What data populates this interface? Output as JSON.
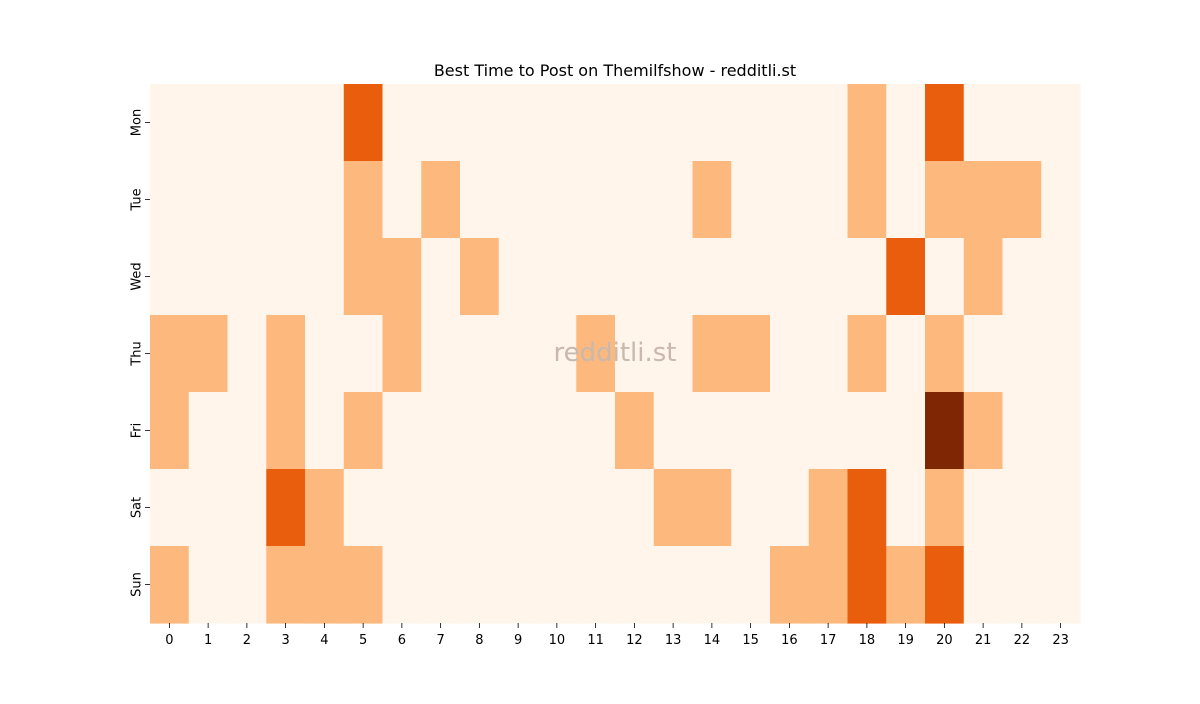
{
  "chart_data": {
    "type": "heatmap",
    "title": "Best Time to Post on Themilfshow - redditli.st",
    "watermark": "redditli.st",
    "xlabel": "",
    "ylabel": "",
    "x": [
      "0",
      "1",
      "2",
      "3",
      "4",
      "5",
      "6",
      "7",
      "8",
      "9",
      "10",
      "11",
      "12",
      "13",
      "14",
      "15",
      "16",
      "17",
      "18",
      "19",
      "20",
      "21",
      "22",
      "23"
    ],
    "y": [
      "Mon",
      "Tue",
      "Wed",
      "Thu",
      "Fri",
      "Sat",
      "Sun"
    ],
    "values": [
      [
        0,
        0,
        0,
        0,
        0,
        2,
        0,
        0,
        0,
        0,
        0,
        0,
        0,
        0,
        0,
        0,
        0,
        0,
        1,
        0,
        2,
        0,
        0,
        0
      ],
      [
        0,
        0,
        0,
        0,
        0,
        1,
        0,
        1,
        0,
        0,
        0,
        0,
        0,
        0,
        1,
        0,
        0,
        0,
        1,
        0,
        1,
        1,
        1,
        0
      ],
      [
        0,
        0,
        0,
        0,
        0,
        1,
        1,
        0,
        1,
        0,
        0,
        0,
        0,
        0,
        0,
        0,
        0,
        0,
        0,
        2,
        0,
        1,
        0,
        0
      ],
      [
        1,
        1,
        0,
        1,
        0,
        0,
        1,
        0,
        0,
        0,
        0,
        1,
        0,
        0,
        1,
        1,
        0,
        0,
        1,
        0,
        1,
        0,
        0,
        0
      ],
      [
        1,
        0,
        0,
        1,
        0,
        1,
        0,
        0,
        0,
        0,
        0,
        0,
        1,
        0,
        0,
        0,
        0,
        0,
        0,
        0,
        3,
        1,
        0,
        0
      ],
      [
        0,
        0,
        0,
        2,
        1,
        0,
        0,
        0,
        0,
        0,
        0,
        0,
        0,
        1,
        1,
        0,
        0,
        1,
        2,
        0,
        1,
        0,
        0,
        0
      ],
      [
        1,
        0,
        0,
        1,
        1,
        1,
        0,
        0,
        0,
        0,
        0,
        0,
        0,
        0,
        0,
        0,
        1,
        1,
        2,
        1,
        2,
        0,
        0,
        0
      ]
    ],
    "colors": {
      "0": "#fff5eb",
      "1": "#fdb97d",
      "2": "#e95e0d",
      "3": "#7f2704"
    },
    "watermark_color": "#c8b8ad",
    "grid": false,
    "legend": "none"
  }
}
